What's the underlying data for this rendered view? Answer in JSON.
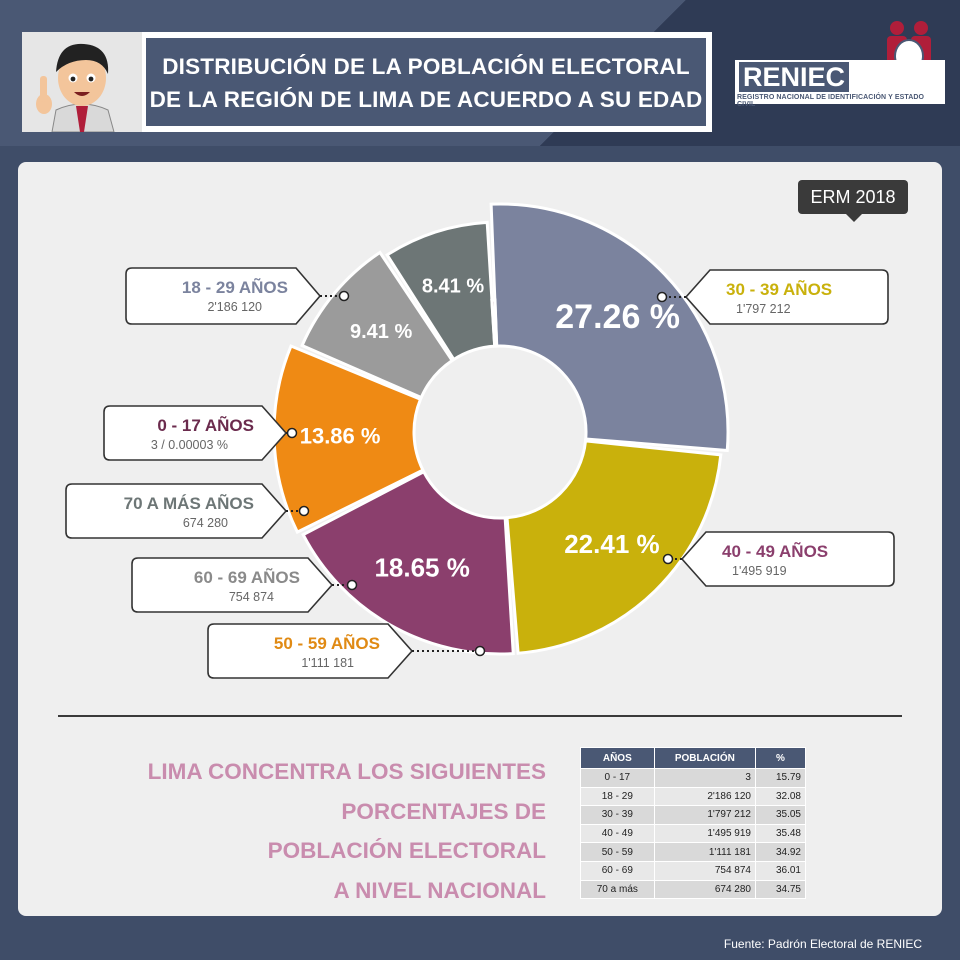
{
  "header": {
    "title_line1": "DISTRIBUCIÓN DE LA POBLACIÓN ELECTORAL",
    "title_line2": "DE LA REGIÓN DE LIMA DE ACUERDO A SU EDAD",
    "logo_name": "RENIEC",
    "logo_subtitle": "REGISTRO NACIONAL DE IDENTIFICACIÓN Y ESTADO CIVIL"
  },
  "badge": "ERM 2018",
  "chart_data": {
    "type": "pie",
    "title": "DISTRIBUCIÓN DE LA POBLACIÓN ELECTORAL DE LA REGIÓN DE LIMA DE ACUERDO A SU EDAD",
    "slices": [
      {
        "label": "18 - 29 AÑOS",
        "population": "2'186 120",
        "percent": 27.26,
        "percent_text": "27.26 %",
        "color": "#7b839e"
      },
      {
        "label": "30 - 39 AÑOS",
        "population": "1'797 212",
        "percent": 22.41,
        "percent_text": "22.41 %",
        "color": "#c9b10c"
      },
      {
        "label": "40 - 49 AÑOS",
        "population": "1'495 919",
        "percent": 18.65,
        "percent_text": "18.65 %",
        "color": "#8b3f6d"
      },
      {
        "label": "50 - 59 AÑOS",
        "population": "1'111 181",
        "percent": 13.86,
        "percent_text": "13.86 %",
        "color": "#ef8a14"
      },
      {
        "label": "60 - 69 AÑOS",
        "population": "754 874",
        "percent": 9.41,
        "percent_text": "9.41 %",
        "color": "#9b9b9b"
      },
      {
        "label": "70 A MÁS AÑOS",
        "population": "674 280",
        "percent": 8.41,
        "percent_text": "8.41 %",
        "color": "#6d7676"
      },
      {
        "label": "0 - 17 AÑOS",
        "population": "3 / 0.00003 %",
        "percent": 3e-05,
        "percent_text": "",
        "color": "#6b2b4d"
      }
    ]
  },
  "label_colors": {
    "18 - 29 AÑOS": "#7b839e",
    "30 - 39 AÑOS": "#c9b10c",
    "40 - 49 AÑOS": "#8b3f6d",
    "50 - 59 AÑOS": "#e08a14",
    "60 - 69 AÑOS": "#8a8a8a",
    "70 A MÁS AÑOS": "#6d7676",
    "0 - 17 AÑOS": "#6b2b4d"
  },
  "national": {
    "text_lines": [
      "LIMA CONCENTRA LOS SIGUIENTES",
      "PORCENTAJES DE",
      "POBLACIÓN ELECTORAL",
      "A NIVEL NACIONAL"
    ],
    "headers": [
      "AÑOS",
      "POBLACIÓN",
      "%"
    ],
    "rows": [
      [
        "0 - 17",
        "3",
        "15.79"
      ],
      [
        "18 - 29",
        "2'186 120",
        "32.08"
      ],
      [
        "30 - 39",
        "1'797 212",
        "35.05"
      ],
      [
        "40 - 49",
        "1'495 919",
        "35.48"
      ],
      [
        "50 - 59",
        "1'111 181",
        "34.92"
      ],
      [
        "60 - 69",
        "754 874",
        "36.01"
      ],
      [
        "70 a más",
        "674 280",
        "34.75"
      ]
    ]
  },
  "footer": "Fuente: Padrón Electoral de RENIEC"
}
